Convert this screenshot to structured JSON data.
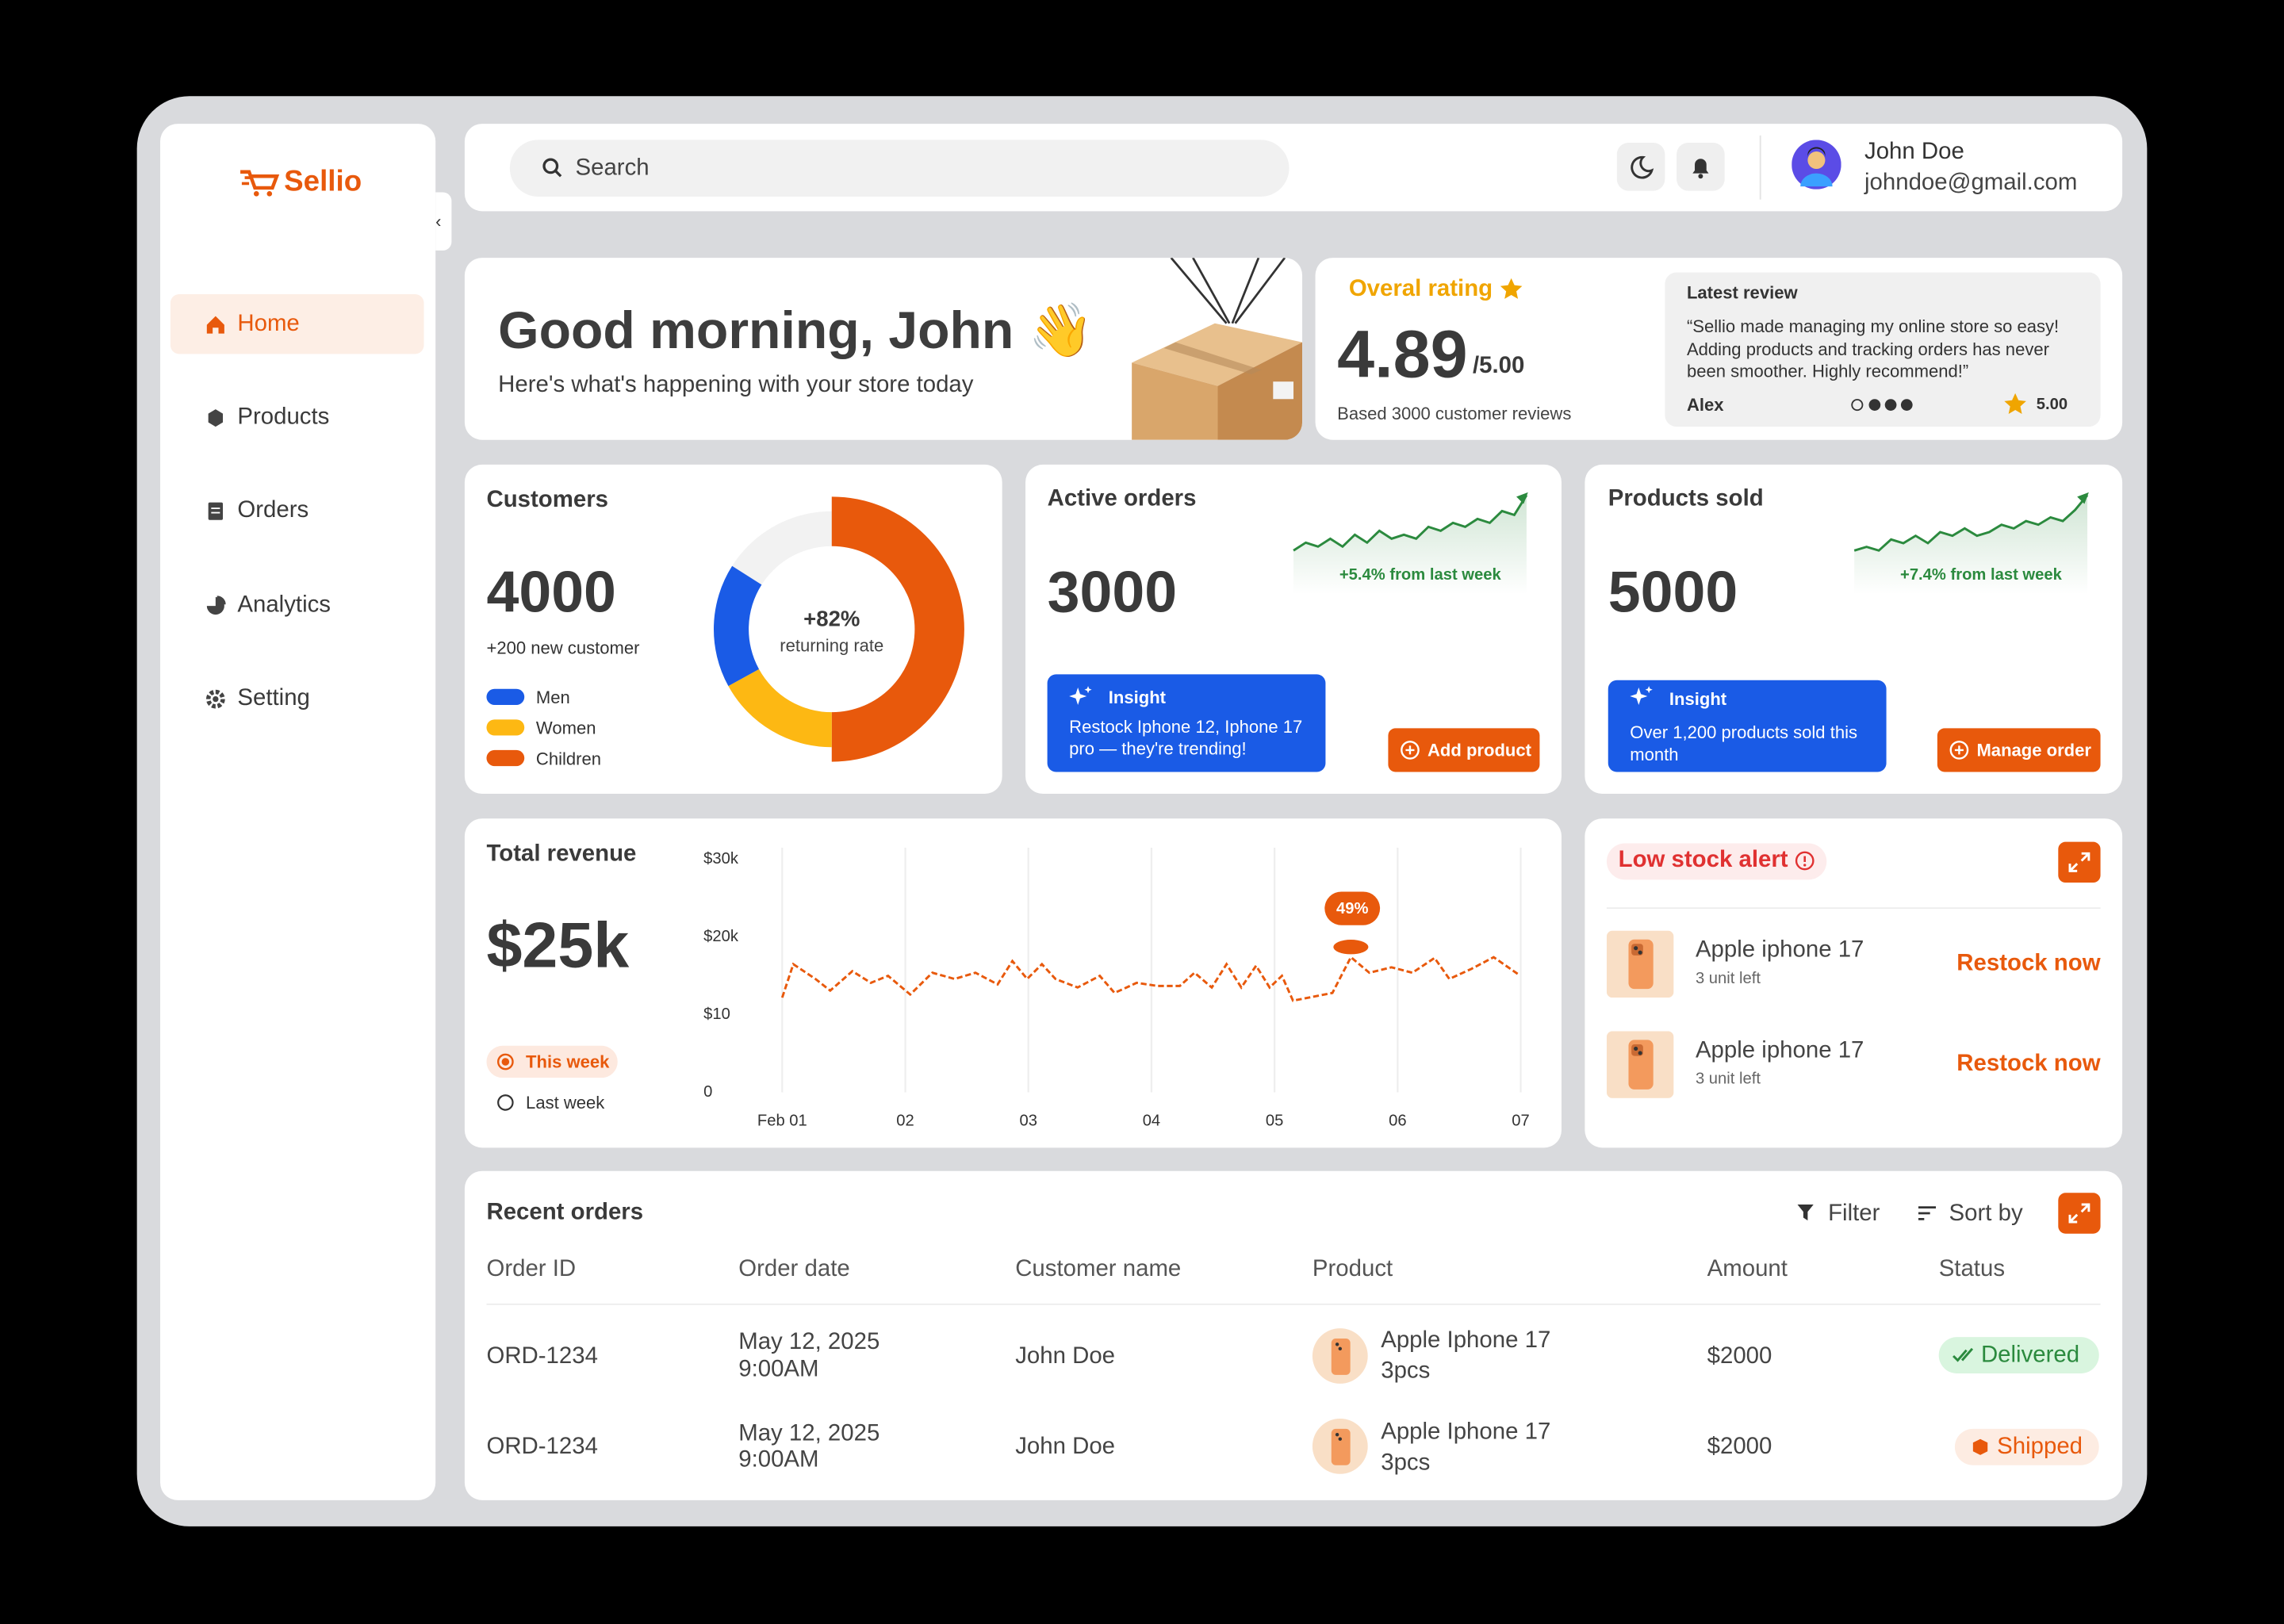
{
  "sidebar": {
    "brand": "Sellio",
    "nav": [
      "Home",
      "Products",
      "Orders",
      "Analytics",
      "Setting"
    ]
  },
  "topbar": {
    "search": "Search",
    "user": {
      "name": "John Doe",
      "email": "johndoe@gmail.com"
    }
  },
  "greeting": {
    "title": "Good morning, John",
    "emoji": "👋",
    "subtitle": "Here's what's happening with your store today"
  },
  "rating": {
    "label": "Overal rating",
    "value": "4.89",
    "scale": "/5.00",
    "based": "Based 3000 customer reviews",
    "review": {
      "title": "Latest review",
      "text": "“Sellio made managing my online store so easy! Adding products and tracking orders has never been smoother. Highly recommend!”",
      "author": "Alex",
      "score": "5.00"
    }
  },
  "customers": {
    "title": "Customers",
    "value": "4000",
    "change": "+200 new customer"
  },
  "active_orders": {
    "title": "Active orders",
    "value": "3000",
    "insight": {
      "title": "Insight",
      "text": "Restock Iphone 12, Iphone 17 pro — they're trending!"
    },
    "button": "Add product"
  },
  "products_sold": {
    "title": "Products sold",
    "value": "5000",
    "insight": {
      "title": "Insight",
      "text": "Over 1,200 products sold this month"
    },
    "button": "Manage order"
  },
  "revenue": {
    "title": "Total revenue",
    "value": "$25k",
    "periods": [
      "This week",
      "Last week"
    ]
  },
  "low_stock": {
    "title": "Low stock alert",
    "items": [
      {
        "name": "Apple iphone 17",
        "stock": "3 unit left",
        "action": "Restock now"
      },
      {
        "name": "Apple iphone 17",
        "stock": "3 unit left",
        "action": "Restock now"
      }
    ]
  },
  "recent_orders": {
    "title": "Recent orders",
    "filter": "Filter",
    "sort": "Sort by",
    "columns": [
      "Order ID",
      "Order date",
      "Customer name",
      "Product",
      "Amount",
      "Status"
    ],
    "rows": [
      {
        "id": "ORD-1234",
        "date": "May 12, 2025",
        "time": "9:00AM",
        "customer": "John Doe",
        "product": "Apple Iphone 17",
        "qty": "3pcs",
        "amount": "$2000",
        "status": "Delivered"
      },
      {
        "id": "ORD-1234",
        "date": "May 12, 2025",
        "time": "9:00AM",
        "customer": "John Doe",
        "product": "Apple Iphone 17",
        "qty": "3pcs",
        "amount": "$2000",
        "status": "Shipped"
      }
    ]
  },
  "chart_data": [
    {
      "type": "donut",
      "center_label": "+82%",
      "center_caption": "returning rate",
      "categories": [
        "Men",
        "Women",
        "Children"
      ],
      "values": [
        17,
        17,
        50
      ],
      "colors": [
        "#1a5be6",
        "#fdb813",
        "#e8590c"
      ]
    },
    {
      "type": "sparkline",
      "annotation": "+5.4% from last week",
      "color": "#2b8a3e",
      "values": [
        4,
        6,
        5,
        7,
        5,
        8,
        6,
        9,
        7,
        8,
        7,
        10,
        9,
        11,
        10,
        12,
        11,
        14,
        13,
        18
      ]
    },
    {
      "type": "sparkline",
      "annotation": "+7.4% from last week",
      "color": "#2b8a3e",
      "values": [
        4,
        5,
        4,
        7,
        6,
        8,
        6,
        9,
        8,
        10,
        8,
        9,
        11,
        10,
        12,
        11,
        13,
        12,
        15,
        19
      ]
    },
    {
      "type": "line",
      "color": "#e8590c",
      "annotation": "49%",
      "x": [
        1.0,
        1.09,
        1.27,
        1.39,
        1.57,
        1.72,
        1.86,
        2.04,
        2.22,
        2.4,
        2.57,
        2.75,
        2.87,
        2.99,
        3.11,
        3.22,
        3.4,
        3.58,
        3.7,
        3.88,
        4.05,
        4.23,
        4.35,
        4.49,
        4.61,
        4.73,
        4.85,
        4.96,
        5.06,
        5.15,
        5.47,
        5.62,
        5.77,
        5.95,
        6.12,
        6.3,
        6.42,
        6.6,
        6.78,
        6.98
      ],
      "values": [
        12200,
        16500,
        14600,
        13100,
        15600,
        14100,
        15000,
        12600,
        15400,
        14600,
        15400,
        13900,
        16900,
        14600,
        16500,
        14600,
        13500,
        15000,
        12800,
        14100,
        13700,
        13700,
        15400,
        13500,
        16500,
        13500,
        16300,
        13500,
        15000,
        11800,
        12800,
        17400,
        15400,
        16100,
        15400,
        17300,
        14600,
        15900,
        17400,
        15200
      ],
      "xlim": [
        1,
        7
      ],
      "xticks": [
        {
          "value": 1,
          "label": "Feb 01"
        },
        {
          "value": 2,
          "label": "02"
        },
        {
          "value": 3,
          "label": "03"
        },
        {
          "value": 4,
          "label": "04"
        },
        {
          "value": 5,
          "label": "05"
        },
        {
          "value": 6,
          "label": "06"
        },
        {
          "value": 7,
          "label": "07"
        }
      ],
      "ylim": [
        0,
        30000
      ],
      "yticks": [
        0,
        {
          "value": 10000,
          "label": "$10"
        },
        {
          "value": 20000,
          "label": "$20k"
        },
        {
          "value": 30000,
          "label": "$30k"
        }
      ],
      "grid": true
    }
  ]
}
